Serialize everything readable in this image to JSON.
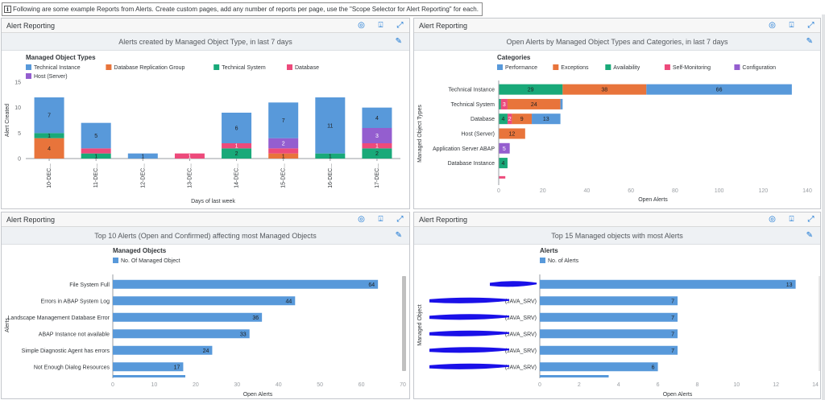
{
  "banner": {
    "text": "Following are some example Reports from Alerts. Create custom pages, add any number of reports per page, use the \"Scope Selector for Alert Reporting\" for each."
  },
  "icons": {
    "info": "info-icon",
    "target": "target-icon",
    "export": "export-icon",
    "expand": "expand-icon",
    "edit": "pencil-icon"
  },
  "colors": {
    "blue": "#5899da",
    "orange": "#e8743b",
    "green": "#19a979",
    "pink": "#ed4a7b",
    "purple": "#945ecf",
    "header_bg": "#eef1f4"
  },
  "panels": [
    {
      "header": "Alert Reporting",
      "title": "Alerts created by Managed Object Type, in last 7 days"
    },
    {
      "header": "Alert Reporting",
      "title": "Open Alerts by Managed Object Types and Categories, in last 7 days"
    },
    {
      "header": "Alert Reporting",
      "title": "Top 10 Alerts (Open and Confirmed) affecting most Managed Objects"
    },
    {
      "header": "Alert Reporting",
      "title": "Top 15 Managed objects with most Alerts"
    }
  ],
  "chart_data": [
    {
      "type": "bar",
      "orientation": "vertical",
      "stacked": true,
      "legend_title": "Managed Object Types",
      "categories": [
        "10-DEC...",
        "11-DEC...",
        "12-DEC...",
        "13-DEC...",
        "14-DEC...",
        "15-DEC...",
        "16-DEC...",
        "17-DEC..."
      ],
      "series": [
        {
          "name": "Technical Instance",
          "color": "#5899da",
          "values": [
            7,
            5,
            1,
            0,
            6,
            7,
            11,
            4
          ]
        },
        {
          "name": "Database Replication Group",
          "color": "#e8743b",
          "values": [
            4,
            0,
            0,
            0,
            0,
            1,
            0,
            0
          ]
        },
        {
          "name": "Technical System",
          "color": "#19a979",
          "values": [
            1,
            1,
            0,
            0,
            2,
            0,
            1,
            2
          ]
        },
        {
          "name": "Database",
          "color": "#ed4a7b",
          "values": [
            0,
            1,
            0,
            1,
            1,
            1,
            0,
            1
          ]
        },
        {
          "name": "Host (Server)",
          "color": "#945ecf",
          "values": [
            0,
            0,
            0,
            0,
            0,
            2,
            0,
            3
          ]
        }
      ],
      "labels": [
        [
          "7",
          "4",
          "1",
          "",
          ""
        ],
        [
          "5",
          "",
          "1",
          "",
          ""
        ],
        [
          "1",
          "",
          "",
          "",
          ""
        ],
        [
          "",
          "",
          "",
          "1",
          ""
        ],
        [
          "6",
          "",
          "2",
          "1",
          ""
        ],
        [
          "7",
          "1",
          "",
          "",
          "2"
        ],
        [
          "11",
          "",
          "1",
          "",
          ""
        ],
        [
          "4",
          "",
          "2",
          "1",
          "3"
        ]
      ],
      "ylabel": "Alert Created",
      "xlabel": "Days of last week",
      "ylim": [
        0,
        15
      ],
      "yticks": [
        "0",
        "5",
        "10",
        "15"
      ],
      "grid": false,
      "legend": "top-left"
    },
    {
      "type": "bar",
      "orientation": "horizontal",
      "stacked": true,
      "legend_title": "Categories",
      "categories": [
        "Technical Instance",
        "Technical System",
        "Database",
        "Host (Server)",
        "Application Server ABAP",
        "Database Instance",
        ""
      ],
      "series": [
        {
          "name": "Performance",
          "color": "#5899da",
          "values": [
            66,
            1,
            13,
            0,
            0,
            0,
            0
          ]
        },
        {
          "name": "Exceptions",
          "color": "#e8743b",
          "values": [
            38,
            24,
            9,
            12,
            0,
            0,
            0
          ]
        },
        {
          "name": "Availability",
          "color": "#19a979",
          "values": [
            29,
            1,
            4,
            0,
            0,
            4,
            0
          ]
        },
        {
          "name": "Self-Monitoring",
          "color": "#ed4a7b",
          "values": [
            0,
            3,
            2,
            0,
            0,
            0,
            3
          ]
        },
        {
          "name": "Configuration",
          "color": "#945ecf",
          "values": [
            0,
            0,
            0,
            0,
            5,
            0,
            0
          ]
        }
      ],
      "labels": [
        [
          "66",
          "38",
          "29",
          "",
          ""
        ],
        [
          "",
          "24",
          "",
          "3",
          ""
        ],
        [
          "13",
          "9",
          "4",
          "2",
          ""
        ],
        [
          "",
          "12",
          "",
          "",
          ""
        ],
        [
          "",
          "",
          "",
          "",
          "5"
        ],
        [
          "",
          "",
          "4",
          "",
          ""
        ],
        [
          "",
          "",
          "",
          "",
          ""
        ]
      ],
      "ylabel": "Managed Object Types",
      "xlabel": "Open Alerts",
      "xlim": [
        0,
        140
      ],
      "xticks": [
        "0",
        "20",
        "40",
        "60",
        "80",
        "100",
        "120",
        "140"
      ],
      "legend": "top-left"
    },
    {
      "type": "bar",
      "orientation": "horizontal",
      "legend_title": "Managed Objects",
      "series": [
        {
          "name": "No. Of Managed Object",
          "color": "#5899da"
        }
      ],
      "categories": [
        "File System Full",
        "Errors in ABAP System Log",
        "Landscape Management Database Error",
        "ABAP Instance not available",
        "Simple Diagnostic Agent has errors",
        "Not Enough Dialog Resources"
      ],
      "values": [
        64,
        44,
        36,
        33,
        24,
        17
      ],
      "ylabel": "Alerts",
      "xlabel": "Open Alerts",
      "xlim": [
        0,
        70
      ],
      "xticks": [
        "0",
        "10",
        "20",
        "30",
        "40",
        "50",
        "60",
        "70"
      ],
      "legend": "top-left"
    },
    {
      "type": "bar",
      "orientation": "horizontal",
      "legend_title": "Alerts",
      "series": [
        {
          "name": "No. of Alerts",
          "color": "#5899da"
        }
      ],
      "categories": [
        "",
        "(JAVA_SRV)",
        "(JAVA_SRV)",
        "(JAVA_SRV)",
        "(JAVA_SRV)",
        "(JAVA_SRV)"
      ],
      "values": [
        13,
        7,
        7,
        7,
        7,
        6
      ],
      "ylabel": "Managed Object",
      "xlabel": "Open Alerts",
      "xlim": [
        0,
        14
      ],
      "xticks": [
        "0",
        "2",
        "4",
        "6",
        "8",
        "10",
        "12",
        "14"
      ],
      "legend": "top-left"
    }
  ]
}
